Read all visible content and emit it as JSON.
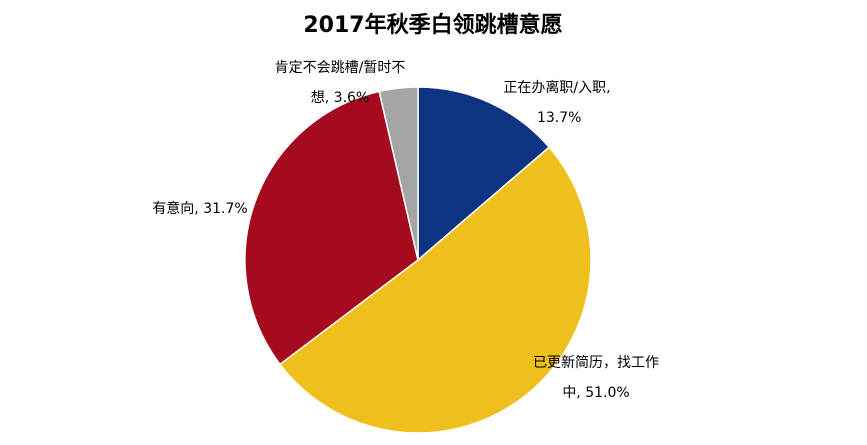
{
  "chart_data": {
    "type": "pie",
    "title": "2017年秋季白领跳槽意愿",
    "values": [
      13.7,
      51.0,
      31.7,
      3.6
    ],
    "value_labels": [
      "正在办离职/入职, 13.7%",
      "已更新简历，找工作中, 51.0%",
      "有意向, 31.7%",
      "肯定不会跳槽/暂时不想, 3.6%"
    ],
    "colors": [
      "#0d3482",
      "#efbf1b",
      "#a50b1f",
      "#a5a5a5"
    ]
  }
}
